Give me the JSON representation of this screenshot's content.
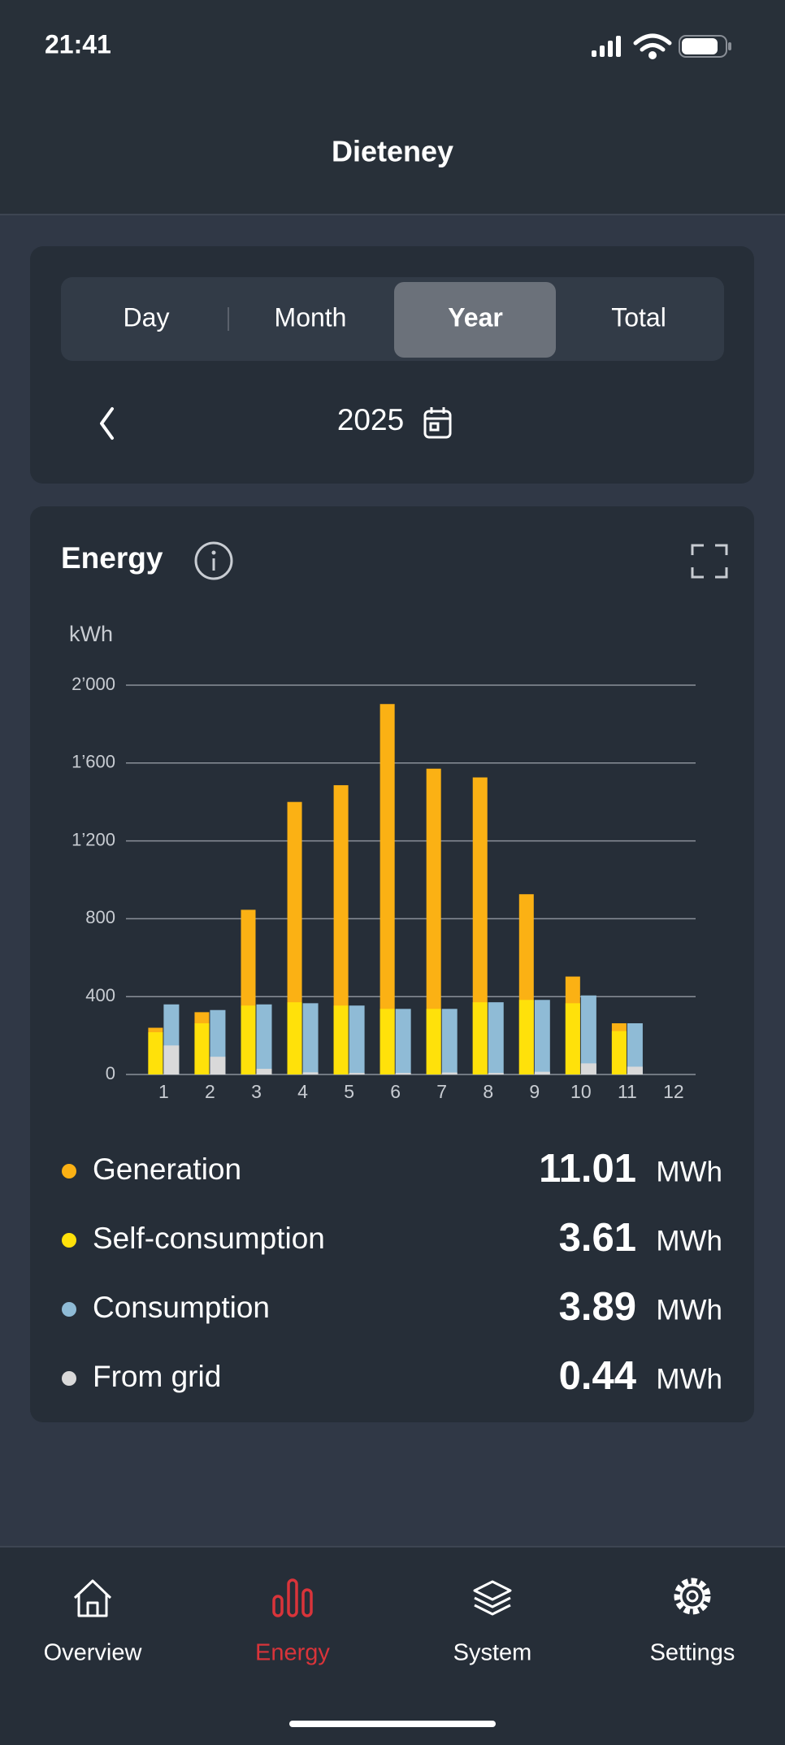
{
  "status_bar": {
    "time": "21:41"
  },
  "header": {
    "title": "Dieteney"
  },
  "period_tabs": {
    "tabs": [
      "Day",
      "Month",
      "Year",
      "Total"
    ],
    "selected": 2
  },
  "period": {
    "year": "2025"
  },
  "chart_card": {
    "title": "Energy"
  },
  "chart_data": {
    "type": "bar",
    "y_label": "kWh",
    "categories": [
      "1",
      "2",
      "3",
      "4",
      "5",
      "6",
      "7",
      "8",
      "9",
      "10",
      "11",
      "12"
    ],
    "series": [
      {
        "name": "Generation",
        "color": "#fbb114",
        "values": [
          240,
          320,
          846,
          1400,
          1486,
          1903,
          1571,
          1526,
          926,
          503,
          263,
          null
        ]
      },
      {
        "name": "Self-consumption",
        "color": "#ffe10a",
        "values": [
          217,
          263,
          354,
          371,
          354,
          337,
          337,
          371,
          383,
          366,
          223,
          null
        ]
      },
      {
        "name": "Consumption",
        "color": "#8fbbd6",
        "values": [
          360,
          331,
          360,
          366,
          354,
          337,
          337,
          371,
          383,
          406,
          263,
          null
        ]
      },
      {
        "name": "From grid",
        "color": "#d9d9d9",
        "values": [
          149,
          91,
          29,
          11,
          8,
          8,
          10,
          8,
          14,
          57,
          40,
          null
        ]
      }
    ],
    "ylim": [
      0,
      2000
    ],
    "yticks": [
      0,
      400,
      800,
      {
        "value": 1200,
        "label": "1’200"
      },
      {
        "value": 1600,
        "label": "1’600"
      },
      {
        "value": 2000,
        "label": "2’000"
      }
    ],
    "grid": true
  },
  "summary": {
    "unit": "MWh",
    "totals": [
      11.01,
      3.61,
      3.89,
      0.44
    ]
  },
  "nav": {
    "items": [
      "Overview",
      "Energy",
      "System",
      "Settings"
    ],
    "active": 1
  }
}
